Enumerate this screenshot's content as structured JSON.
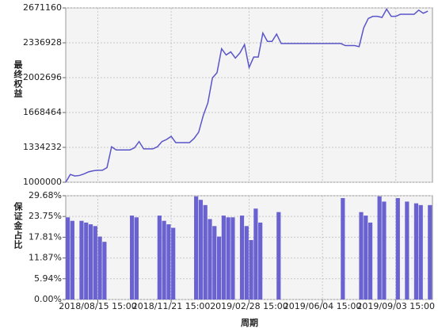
{
  "chart_data": [
    {
      "type": "line",
      "y_label": "最终权益",
      "xlim": [
        0,
        80
      ],
      "x": [
        0,
        1,
        2,
        3,
        4,
        5,
        6,
        7,
        8,
        9,
        10,
        11,
        12,
        13,
        14,
        15,
        16,
        17,
        18,
        19,
        20,
        21,
        22,
        23,
        24,
        25,
        26,
        27,
        28,
        29,
        30,
        31,
        32,
        33,
        34,
        35,
        36,
        37,
        38,
        39,
        40,
        41,
        42,
        43,
        44,
        45,
        46,
        47,
        48,
        49,
        50,
        51,
        52,
        53,
        54,
        55,
        56,
        57,
        58,
        59,
        60,
        61,
        62,
        63,
        64,
        65,
        66,
        67,
        68,
        69,
        70,
        71,
        72,
        73,
        74,
        75,
        76,
        77,
        78,
        79
      ],
      "series": [
        {
          "color": "#5a55c8",
          "values": [
            1000000,
            1075000,
            1060000,
            1065000,
            1080000,
            1100000,
            1110000,
            1115000,
            1115000,
            1140000,
            1340000,
            1310000,
            1310000,
            1310000,
            1310000,
            1330000,
            1390000,
            1320000,
            1320000,
            1320000,
            1340000,
            1390000,
            1410000,
            1440000,
            1380000,
            1380000,
            1380000,
            1380000,
            1420000,
            1480000,
            1640000,
            1760000,
            2000000,
            2050000,
            2280000,
            2220000,
            2250000,
            2190000,
            2240000,
            2320000,
            2100000,
            2200000,
            2200000,
            2430000,
            2350000,
            2350000,
            2420000,
            2330000,
            2330000,
            2330000,
            2330000,
            2330000,
            2330000,
            2330000,
            2330000,
            2330000,
            2330000,
            2330000,
            2330000,
            2330000,
            2330000,
            2310000,
            2310000,
            2310000,
            2300000,
            2480000,
            2570000,
            2590000,
            2590000,
            2580000,
            2660000,
            2590000,
            2590000,
            2610000,
            2610000,
            2610000,
            2610000,
            2650000,
            2620000,
            2640000
          ]
        }
      ],
      "ylim": [
        1000000,
        2671160
      ],
      "yticks": [
        1000000,
        1334232,
        1668464,
        2002696,
        2336928,
        2671160
      ],
      "grid": true
    },
    {
      "type": "bar",
      "y_label": "保证金占比",
      "x_label": "周期",
      "xlim": [
        0,
        80
      ],
      "x": [
        0,
        1,
        2,
        3,
        4,
        5,
        6,
        7,
        8,
        9,
        10,
        11,
        12,
        13,
        14,
        15,
        16,
        17,
        18,
        19,
        20,
        21,
        22,
        23,
        24,
        25,
        26,
        27,
        28,
        29,
        30,
        31,
        32,
        33,
        34,
        35,
        36,
        37,
        38,
        39,
        40,
        41,
        42,
        43,
        44,
        45,
        46,
        47,
        48,
        49,
        50,
        51,
        52,
        53,
        54,
        55,
        56,
        57,
        58,
        59,
        60,
        61,
        62,
        63,
        64,
        65,
        66,
        67,
        68,
        69,
        70,
        71,
        72,
        73,
        74,
        75,
        76,
        77,
        78,
        79
      ],
      "xticks": [
        {
          "value": 7,
          "label": "2018/08/15 15:00"
        },
        {
          "value": 23,
          "label": "2018/11/21 15:00"
        },
        {
          "value": 40,
          "label": "2019/02/28 15:00"
        },
        {
          "value": 56,
          "label": "2019/06/04 15:00"
        },
        {
          "value": 72,
          "label": "2019/09/03 15:00"
        }
      ],
      "series": [
        {
          "color": "#6a62d0",
          "values": [
            23.5,
            22.5,
            0,
            22.5,
            22,
            21.5,
            21,
            18,
            16.5,
            0,
            0,
            0,
            0,
            0,
            24,
            23.5,
            0,
            0,
            0,
            0,
            24,
            22.5,
            21.5,
            20.5,
            0,
            0,
            0,
            0,
            29.5,
            28.5,
            27,
            23,
            21,
            18,
            24,
            23.5,
            23.5,
            0,
            24,
            21,
            17,
            26,
            22,
            0,
            0,
            0,
            25,
            0,
            0,
            0,
            0,
            0,
            0,
            0,
            0,
            0,
            0,
            0,
            0,
            0,
            29,
            0,
            0,
            0,
            25,
            24,
            22,
            0,
            29.5,
            28,
            0,
            0,
            29,
            0,
            28,
            0,
            27.5,
            27,
            0,
            27
          ]
        }
      ],
      "ylim": [
        0,
        29.68
      ],
      "yticks": [
        {
          "value": 0,
          "label": "0.00%"
        },
        {
          "value": 5.94,
          "label": "5.94%"
        },
        {
          "value": 11.87,
          "label": "11.87%"
        },
        {
          "value": 17.81,
          "label": "17.81%"
        },
        {
          "value": 23.75,
          "label": "23.75%"
        },
        {
          "value": 29.68,
          "label": "29.68%"
        }
      ],
      "grid": true
    }
  ]
}
